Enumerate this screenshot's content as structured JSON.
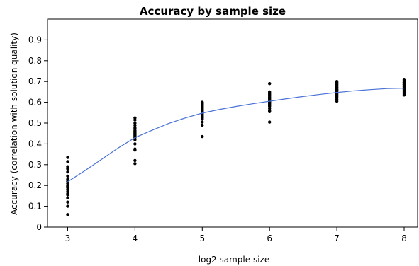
{
  "chart_data": {
    "type": "scatter",
    "title": "Accuracy by sample size",
    "xlabel": "log2 sample size",
    "ylabel": "Accuracy (correlation with solution quality)",
    "xlim": [
      2.7,
      8.2
    ],
    "ylim": [
      0,
      1.0
    ],
    "x_ticks": [
      3,
      4,
      5,
      6,
      7,
      8
    ],
    "y_ticks": [
      0,
      0.1,
      0.2,
      0.3,
      0.4,
      0.5,
      0.6,
      0.7,
      0.8,
      0.9
    ],
    "x_tick_labels": [
      "3",
      "4",
      "5",
      "6",
      "7",
      "8"
    ],
    "y_tick_labels": [
      "0",
      "0.1",
      "0.2",
      "0.3",
      "0.4",
      "0.5",
      "0.6",
      "0.7",
      "0.8",
      "0.9"
    ],
    "grid": false,
    "colors": {
      "points": "#000000",
      "curve": "#4a72d6"
    },
    "series": [
      {
        "type": "scatter",
        "x": [
          3,
          3,
          3,
          3,
          3,
          3,
          3,
          3,
          3,
          3,
          3,
          3,
          3,
          3,
          3,
          3,
          3,
          3,
          3,
          3,
          4,
          4,
          4,
          4,
          4,
          4,
          4,
          4,
          4,
          4,
          4,
          4,
          4,
          4,
          4,
          4,
          4,
          4,
          4,
          4,
          5,
          5,
          5,
          5,
          5,
          5,
          5,
          5,
          5,
          5,
          5,
          5,
          5,
          5,
          5,
          5,
          5,
          5,
          5,
          5,
          6,
          6,
          6,
          6,
          6,
          6,
          6,
          6,
          6,
          6,
          6,
          6,
          6,
          6,
          6,
          6,
          6,
          6,
          6,
          6,
          7,
          7,
          7,
          7,
          7,
          7,
          7,
          7,
          7,
          7,
          7,
          7,
          7,
          7,
          7,
          7,
          7,
          7,
          7,
          7,
          8,
          8,
          8,
          8,
          8,
          8,
          8,
          8,
          8,
          8,
          8,
          8,
          8,
          8,
          8,
          8,
          8,
          8,
          8,
          8
        ],
        "y": [
          0.335,
          0.315,
          0.29,
          0.28,
          0.265,
          0.23,
          0.22,
          0.21,
          0.2,
          0.19,
          0.18,
          0.17,
          0.155,
          0.14,
          0.12,
          0.1,
          0.06,
          0.245,
          0.16,
          0.195,
          0.525,
          0.515,
          0.5,
          0.475,
          0.465,
          0.46,
          0.455,
          0.45,
          0.44,
          0.435,
          0.43,
          0.42,
          0.4,
          0.375,
          0.37,
          0.32,
          0.305,
          0.445,
          0.48,
          0.49,
          0.6,
          0.59,
          0.585,
          0.58,
          0.57,
          0.565,
          0.56,
          0.555,
          0.55,
          0.545,
          0.54,
          0.535,
          0.53,
          0.52,
          0.505,
          0.49,
          0.435,
          0.575,
          0.525,
          0.595,
          0.69,
          0.645,
          0.64,
          0.63,
          0.625,
          0.62,
          0.61,
          0.605,
          0.6,
          0.595,
          0.59,
          0.58,
          0.57,
          0.56,
          0.555,
          0.505,
          0.635,
          0.615,
          0.585,
          0.65,
          0.7,
          0.695,
          0.69,
          0.685,
          0.68,
          0.675,
          0.67,
          0.665,
          0.66,
          0.655,
          0.65,
          0.645,
          0.64,
          0.635,
          0.63,
          0.625,
          0.615,
          0.605,
          0.66,
          0.67,
          0.71,
          0.705,
          0.7,
          0.695,
          0.69,
          0.685,
          0.68,
          0.675,
          0.67,
          0.665,
          0.66,
          0.655,
          0.65,
          0.645,
          0.64,
          0.635,
          0.695,
          0.685,
          0.675,
          0.665
        ]
      },
      {
        "type": "line",
        "x": [
          3,
          3.25,
          3.5,
          3.75,
          4,
          4.25,
          4.5,
          4.75,
          5,
          5.25,
          5.5,
          5.75,
          6,
          6.25,
          6.5,
          6.75,
          7,
          7.25,
          7.5,
          7.75,
          8
        ],
        "y": [
          0.218,
          0.27,
          0.325,
          0.38,
          0.43,
          0.465,
          0.498,
          0.525,
          0.548,
          0.565,
          0.58,
          0.593,
          0.605,
          0.617,
          0.628,
          0.638,
          0.647,
          0.655,
          0.661,
          0.666,
          0.668
        ]
      }
    ]
  }
}
